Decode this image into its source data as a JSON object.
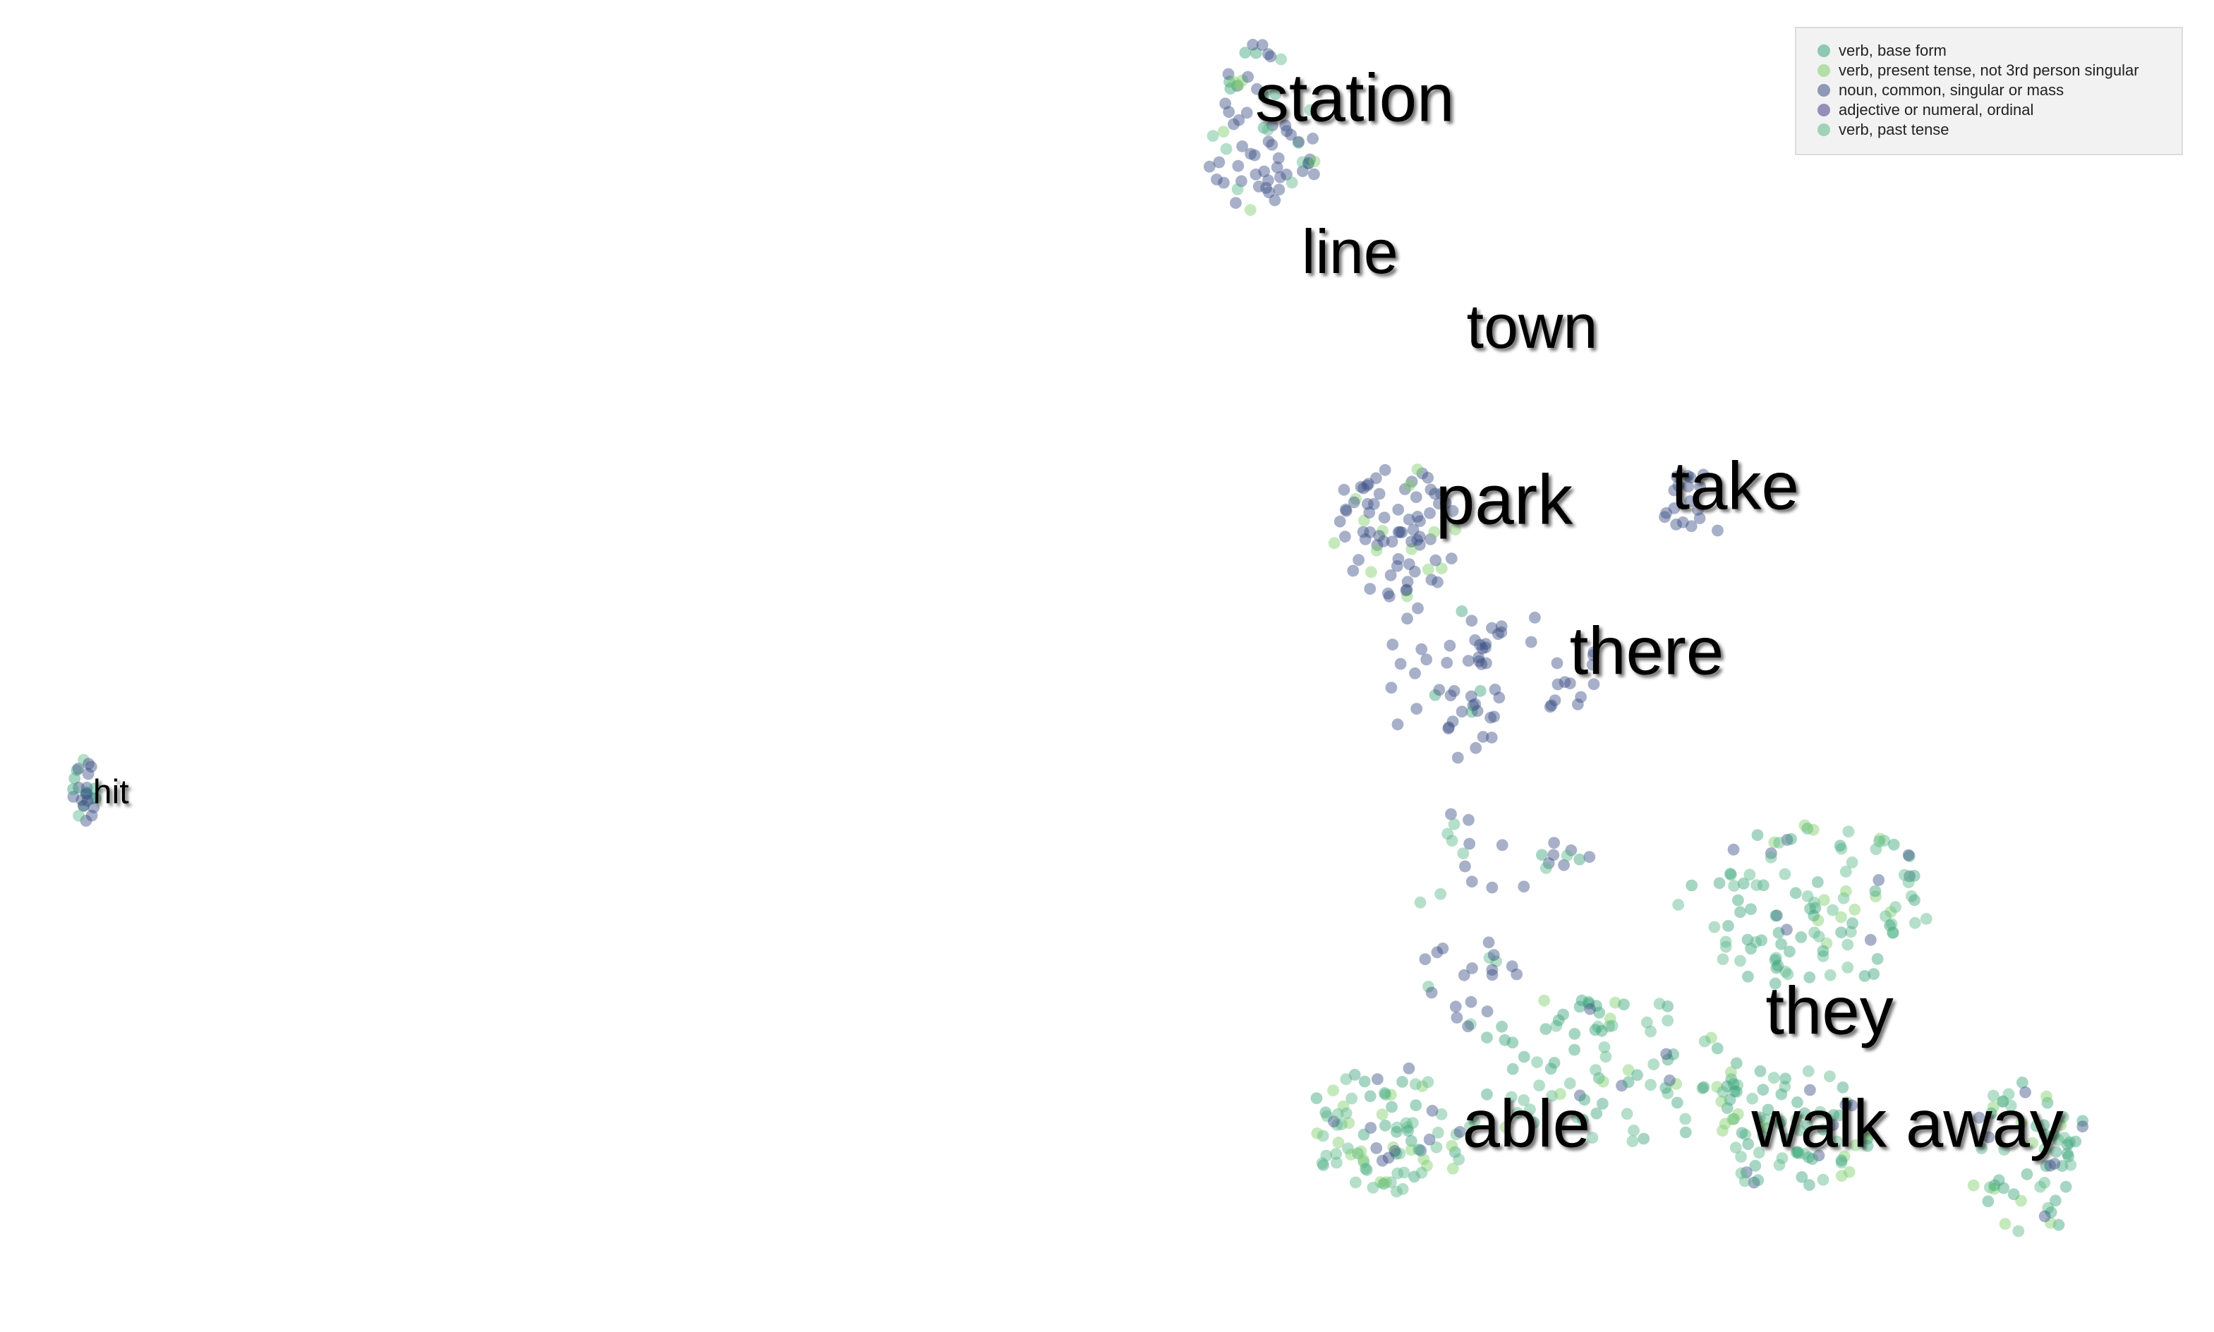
{
  "chart_data": {
    "type": "scatter",
    "title": "",
    "xlabel": "",
    "ylabel": "",
    "xlim": [
      0,
      1570
    ],
    "ylim": [
      0,
      944
    ],
    "grid": false,
    "legend_position": "top-right",
    "series": [
      {
        "name": "verb, base form",
        "color": "#3aa57a"
      },
      {
        "name": "verb, present tense, not 3rd person singular",
        "color": "#7fcf6a"
      },
      {
        "name": "noun, common, singular or mass",
        "color": "#3c4f86"
      },
      {
        "name": "adjective or numeral, ordinal",
        "color": "#4b3d86"
      },
      {
        "name": "verb, past tense",
        "color": "#5cb88a"
      }
    ],
    "clusters": [
      {
        "cx": 895,
        "cy": 90,
        "rx": 45,
        "ry": 60,
        "n": 70,
        "mix": [
          1,
          1,
          5,
          0,
          1
        ],
        "seed": 11
      },
      {
        "cx": 990,
        "cy": 375,
        "rx": 45,
        "ry": 50,
        "n": 80,
        "mix": [
          0,
          1,
          8,
          0,
          0
        ],
        "seed": 22
      },
      {
        "cx": 1030,
        "cy": 480,
        "rx": 50,
        "ry": 60,
        "n": 50,
        "mix": [
          1,
          0,
          8,
          0,
          0
        ],
        "seed": 33
      },
      {
        "cx": 1110,
        "cy": 460,
        "rx": 30,
        "ry": 45,
        "n": 15,
        "mix": [
          0,
          0,
          6,
          0,
          0
        ],
        "seed": 44
      },
      {
        "cx": 1200,
        "cy": 360,
        "rx": 25,
        "ry": 25,
        "n": 18,
        "mix": [
          0,
          0,
          6,
          0,
          0
        ],
        "seed": 55
      },
      {
        "cx": 1040,
        "cy": 650,
        "rx": 45,
        "ry": 80,
        "n": 35,
        "mix": [
          0,
          0,
          7,
          0,
          1
        ],
        "seed": 66
      },
      {
        "cx": 1110,
        "cy": 607,
        "rx": 20,
        "ry": 12,
        "n": 10,
        "mix": [
          2,
          0,
          3,
          0,
          2
        ],
        "seed": 77
      },
      {
        "cx": 60,
        "cy": 560,
        "rx": 10,
        "ry": 22,
        "n": 25,
        "mix": [
          2,
          0,
          6,
          0,
          2
        ],
        "seed": 88
      },
      {
        "cx": 985,
        "cy": 800,
        "rx": 60,
        "ry": 45,
        "n": 90,
        "mix": [
          5,
          2,
          1,
          0,
          5
        ],
        "seed": 99
      },
      {
        "cx": 1130,
        "cy": 760,
        "rx": 110,
        "ry": 55,
        "n": 90,
        "mix": [
          5,
          2,
          1,
          0,
          5
        ],
        "seed": 111
      },
      {
        "cx": 1280,
        "cy": 640,
        "rx": 90,
        "ry": 60,
        "n": 110,
        "mix": [
          5,
          2,
          1,
          0,
          5
        ],
        "seed": 122
      },
      {
        "cx": 1270,
        "cy": 800,
        "rx": 60,
        "ry": 45,
        "n": 80,
        "mix": [
          5,
          2,
          1,
          0,
          5
        ],
        "seed": 133
      },
      {
        "cx": 1440,
        "cy": 820,
        "rx": 45,
        "ry": 55,
        "n": 60,
        "mix": [
          5,
          2,
          2,
          0,
          4
        ],
        "seed": 144
      }
    ],
    "annotations": [
      {
        "text": "station",
        "x": 890,
        "y": 73,
        "size": 48
      },
      {
        "text": "line",
        "x": 923,
        "y": 182,
        "size": 44
      },
      {
        "text": "town",
        "x": 1040,
        "y": 235,
        "size": 44
      },
      {
        "text": "park",
        "x": 1018,
        "y": 358,
        "size": 50
      },
      {
        "text": "take",
        "x": 1185,
        "y": 348,
        "size": 48
      },
      {
        "text": "there",
        "x": 1113,
        "y": 465,
        "size": 48
      },
      {
        "text": "hit",
        "x": 66,
        "y": 563,
        "size": 24
      },
      {
        "text": "they",
        "x": 1252,
        "y": 720,
        "size": 48
      },
      {
        "text": "able",
        "x": 1037,
        "y": 800,
        "size": 48
      },
      {
        "text": "walk away",
        "x": 1242,
        "y": 800,
        "size": 48
      }
    ]
  }
}
